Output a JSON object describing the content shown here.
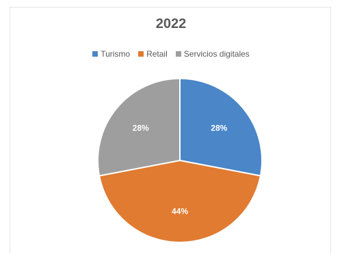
{
  "chart_data": {
    "type": "pie",
    "title": "2022",
    "legend_position": "top",
    "slices": [
      {
        "name": "Turismo",
        "value": 28,
        "label": "28%",
        "color": "#4a86c8"
      },
      {
        "name": "Retail",
        "value": 44,
        "label": "44%",
        "color": "#e07b31"
      },
      {
        "name": "Servicios digitales",
        "value": 28,
        "label": "28%",
        "color": "#9e9e9e"
      }
    ]
  }
}
